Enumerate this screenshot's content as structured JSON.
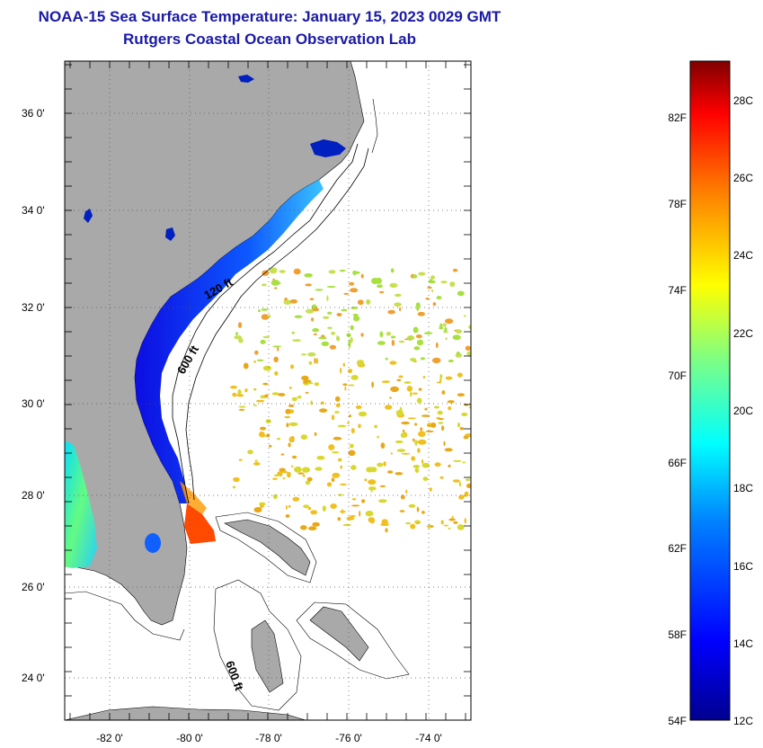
{
  "header": {
    "title": "NOAA-15 Sea Surface Temperature:  January 15, 2023 0029 GMT",
    "subtitle": "Rutgers Coastal Ocean Observation Lab"
  },
  "map": {
    "lat_labels": [
      "36 0'",
      "34 0'",
      "32 0'",
      "30 0'",
      "28 0'",
      "26 0'",
      "24 0'"
    ],
    "lon_labels": [
      "-82 0'",
      "-80 0'",
      "-78 0'",
      "-76 0'",
      "-74 0'"
    ],
    "contour_labels": [
      "120 ft",
      "600 ft",
      "600 ft"
    ],
    "colors": {
      "land": "#a9a9a9",
      "ocean": "#ffffff",
      "grid": "#555555"
    }
  },
  "colorbar": {
    "fahrenheit_labels": [
      "82F",
      "78F",
      "74F",
      "70F",
      "66F",
      "62F",
      "58F",
      "54F"
    ],
    "celsius_labels": [
      "28C",
      "26C",
      "24C",
      "22C",
      "20C",
      "18C",
      "16C",
      "14C",
      "12C"
    ],
    "range_celsius": [
      12,
      29.5
    ],
    "colors": [
      "#00008f",
      "#0000ff",
      "#0080ff",
      "#00ffff",
      "#80ff80",
      "#ffff00",
      "#ff8000",
      "#ff0000",
      "#800000"
    ]
  }
}
